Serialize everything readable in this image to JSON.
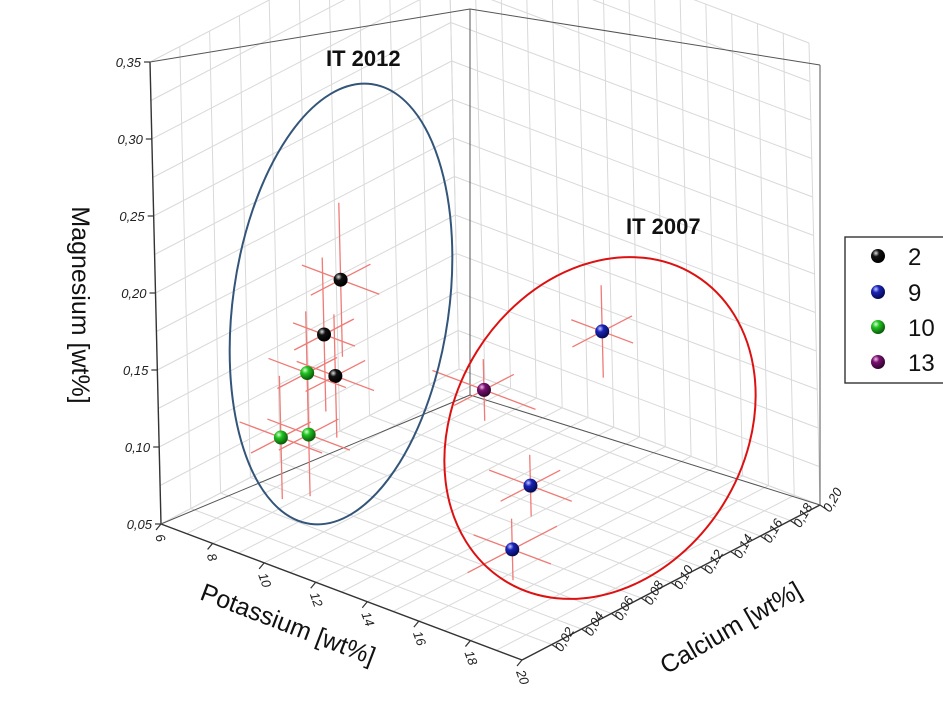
{
  "chart_data": {
    "type": "scatter3d",
    "title": "",
    "axes": {
      "x": {
        "label": "Potassium [wt%]",
        "range": [
          6,
          20
        ],
        "ticks": [
          "6",
          "8",
          "10",
          "12",
          "14",
          "16",
          "18",
          "20"
        ]
      },
      "y": {
        "label": "Calcium [wt%]",
        "range": [
          0.0,
          0.2
        ],
        "ticks": [
          "0,02",
          "0,04",
          "0,06",
          "0,08",
          "0,10",
          "0,12",
          "0,14",
          "0,16",
          "0,18",
          "0,20"
        ]
      },
      "z": {
        "label": "Magnesium [wt%]",
        "range": [
          0.05,
          0.35
        ],
        "ticks": [
          "0,05",
          "0,10",
          "0,15",
          "0,20",
          "0,25",
          "0,30",
          "0,35"
        ]
      }
    },
    "grid": true,
    "groups": [
      {
        "name": "IT 2012",
        "color": "#33557a"
      },
      {
        "name": "IT 2007",
        "color": "#dd1111"
      }
    ],
    "legend": {
      "position": "right",
      "entries": [
        {
          "label": "2",
          "color": "#111111"
        },
        {
          "label": "9",
          "color": "#1a24b8"
        },
        {
          "label": "10",
          "color": "#22c422"
        },
        {
          "label": "13",
          "color": "#7a1070"
        }
      ]
    },
    "series": [
      {
        "name": "2",
        "color": "#111111",
        "points": [
          {
            "potassium": 10.6,
            "calcium": 0.045,
            "magnesium": 0.215,
            "error": [
              1.5,
              0.02,
              0.05
            ]
          },
          {
            "potassium": 9.9,
            "calcium": 0.045,
            "magnesium": 0.175,
            "error": [
              1.2,
              0.02,
              0.05
            ]
          },
          {
            "potassium": 10.6,
            "calcium": 0.04,
            "magnesium": 0.155,
            "error": [
              1.5,
              0.02,
              0.04
            ]
          }
        ]
      },
      {
        "name": "10",
        "color": "#22c422",
        "points": [
          {
            "potassium": 9.5,
            "calcium": 0.04,
            "magnesium": 0.15,
            "error": [
              1.5,
              0.02,
              0.04
            ]
          },
          {
            "potassium": 9.0,
            "calcium": 0.03,
            "magnesium": 0.11,
            "error": [
              1.6,
              0.02,
              0.04
            ]
          },
          {
            "potassium": 9.5,
            "calcium": 0.04,
            "magnesium": 0.11,
            "error": [
              1.6,
              0.02,
              0.04
            ]
          }
        ]
      },
      {
        "name": "13",
        "color": "#7a1070",
        "points": [
          {
            "potassium": 10.5,
            "calcium": 0.14,
            "magnesium": 0.095,
            "error": [
              2.0,
              0.02,
              0.02
            ]
          }
        ]
      },
      {
        "name": "9",
        "color": "#1a24b8",
        "points": [
          {
            "potassium": 14.0,
            "calcium": 0.16,
            "magnesium": 0.145,
            "error": [
              1.2,
              0.02,
              0.03
            ]
          },
          {
            "potassium": 14.0,
            "calcium": 0.11,
            "magnesium": 0.07,
            "error": [
              1.6,
              0.02,
              0.02
            ]
          },
          {
            "potassium": 15.0,
            "calcium": 0.08,
            "magnesium": 0.05,
            "error": [
              1.5,
              0.03,
              0.02
            ]
          }
        ]
      }
    ]
  }
}
